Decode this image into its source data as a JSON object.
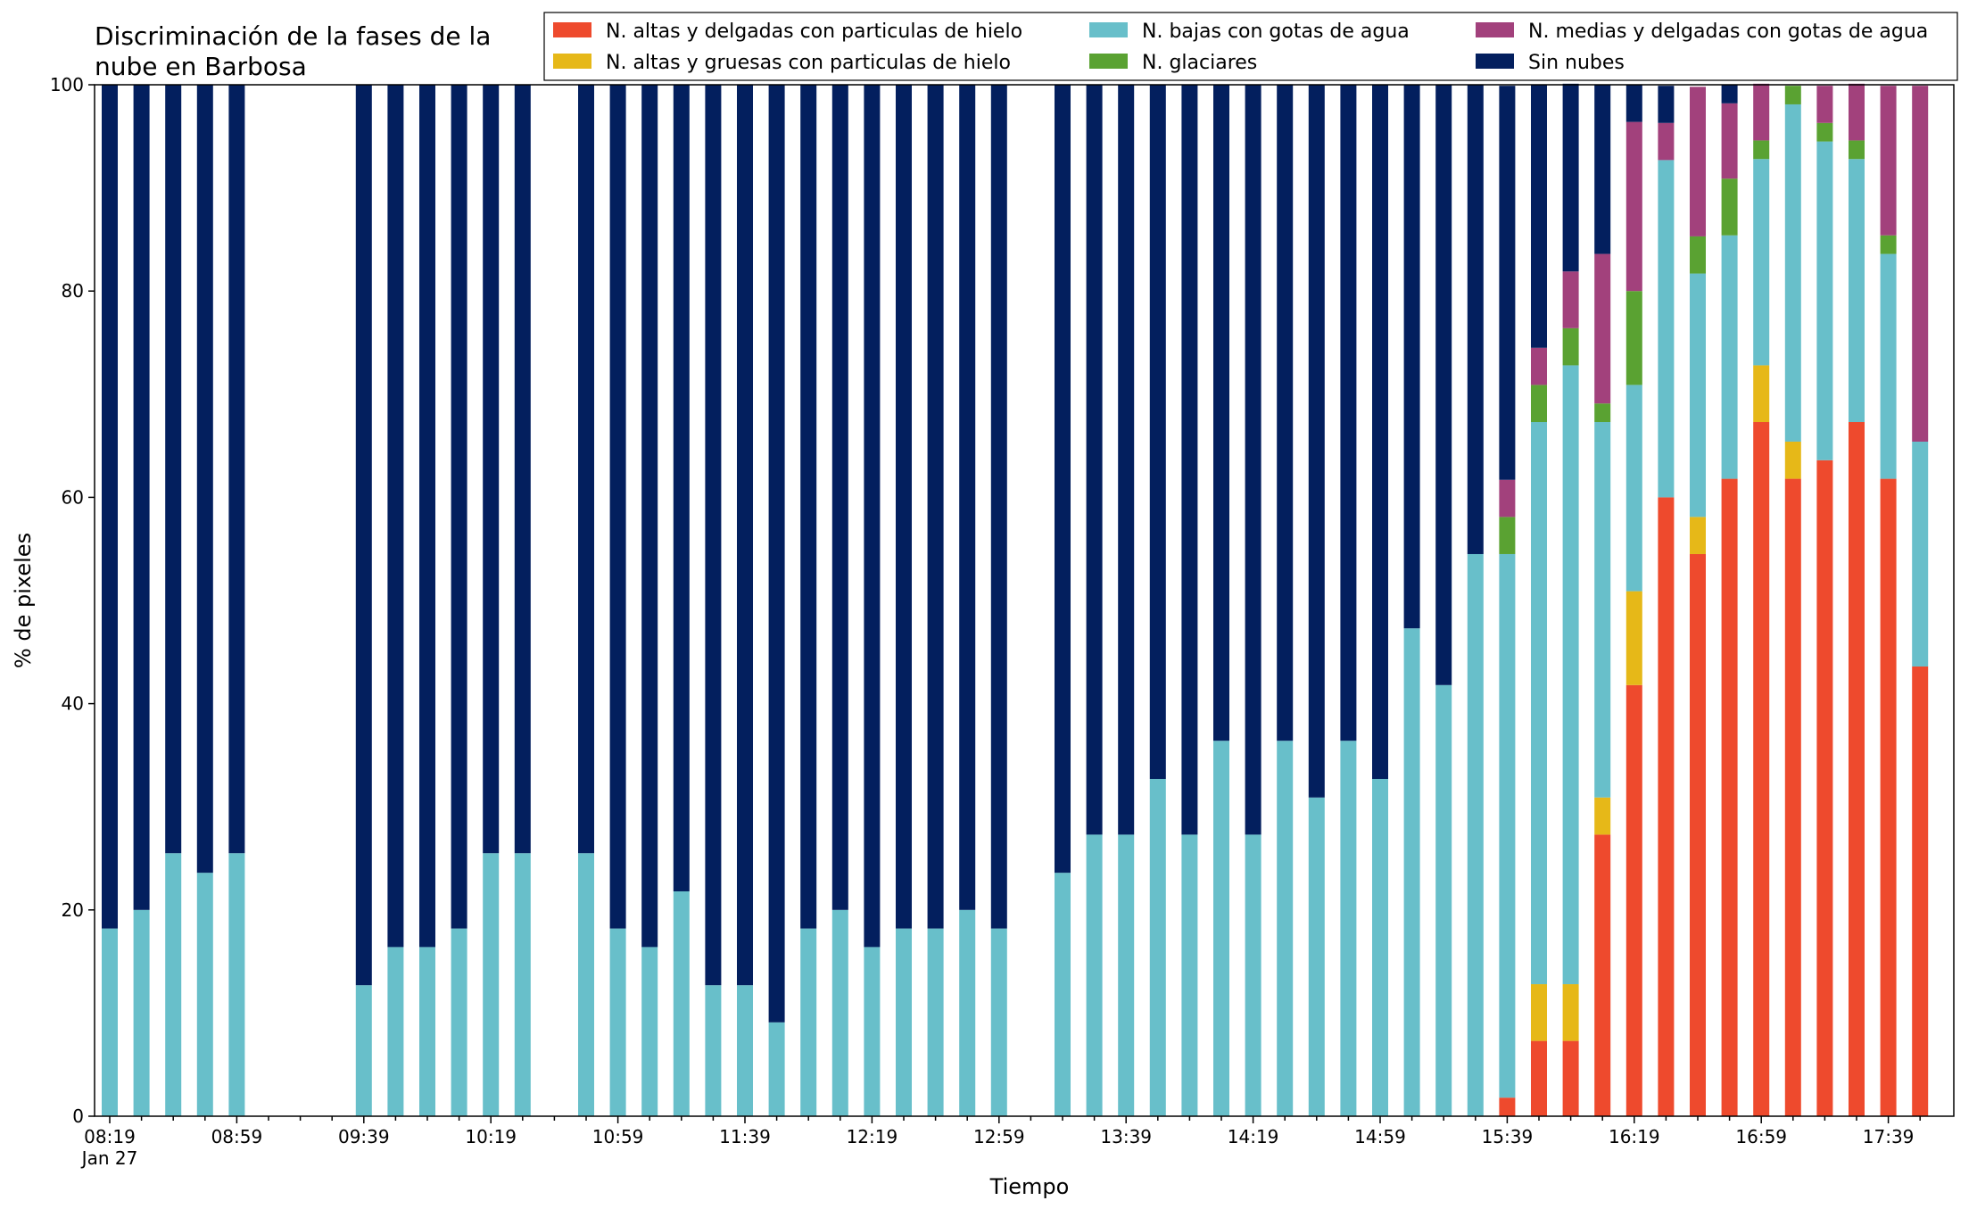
{
  "chart_data": {
    "type": "bar",
    "stacked": true,
    "title": [
      "Discriminación de la fases de la",
      "nube en Barbosa"
    ],
    "xlabel": "Tiempo",
    "ylabel": "% de pixeles",
    "ylim": [
      0,
      100
    ],
    "yticks": [
      0,
      20,
      40,
      60,
      80,
      100
    ],
    "xticks": [
      {
        "index": 0,
        "label": "08:19",
        "sublabel": "Jan 27"
      },
      {
        "index": 4,
        "label": "08:59"
      },
      {
        "index": 8,
        "label": "09:39"
      },
      {
        "index": 12,
        "label": "10:19"
      },
      {
        "index": 16,
        "label": "10:59"
      },
      {
        "index": 20,
        "label": "11:39"
      },
      {
        "index": 24,
        "label": "12:19"
      },
      {
        "index": 28,
        "label": "12:59"
      },
      {
        "index": 32,
        "label": "13:39"
      },
      {
        "index": 36,
        "label": "14:19"
      },
      {
        "index": 40,
        "label": "14:59"
      },
      {
        "index": 44,
        "label": "15:39"
      },
      {
        "index": 48,
        "label": "16:19"
      },
      {
        "index": 52,
        "label": "16:59"
      },
      {
        "index": 56,
        "label": "17:39"
      }
    ],
    "categories": [
      "08:19",
      "08:29",
      "08:39",
      "08:49",
      "08:59",
      "09:09",
      "09:19",
      "09:29",
      "09:39",
      "09:49",
      "09:59",
      "10:09",
      "10:19",
      "10:29",
      "10:39",
      "10:49",
      "10:59",
      "11:09",
      "11:19",
      "11:29",
      "11:39",
      "11:49",
      "11:59",
      "12:09",
      "12:19",
      "12:29",
      "12:39",
      "12:49",
      "12:59",
      "13:09",
      "13:19",
      "13:29",
      "13:39",
      "13:49",
      "13:59",
      "14:09",
      "14:19",
      "14:29",
      "14:39",
      "14:49",
      "14:59",
      "15:09",
      "15:19",
      "15:29",
      "15:39",
      "15:49",
      "15:59",
      "16:09",
      "16:19",
      "16:29",
      "16:39",
      "16:49",
      "16:59",
      "17:09",
      "17:19",
      "17:29",
      "17:39",
      "17:49"
    ],
    "series": [
      {
        "name": "N. altas y delgadas con particulas de hielo",
        "color": "#ee4a2d",
        "values": [
          0,
          0,
          0,
          0,
          0,
          null,
          null,
          null,
          0,
          0,
          0,
          0,
          0,
          0,
          null,
          0,
          0,
          0,
          0,
          0,
          0,
          0,
          0,
          0,
          0,
          0,
          0,
          0,
          0,
          null,
          0,
          0,
          0,
          0,
          0,
          0,
          0,
          0,
          0,
          0,
          0,
          0,
          0,
          0,
          1.8,
          7.3,
          7.3,
          27.3,
          41.8,
          60.0,
          54.5,
          61.8,
          67.3,
          61.8,
          63.6,
          67.3,
          61.8,
          43.6
        ]
      },
      {
        "name": "N. altas y gruesas con particulas de hielo",
        "color": "#e6b818",
        "values": [
          0,
          0,
          0,
          0,
          0,
          null,
          null,
          null,
          0,
          0,
          0,
          0,
          0,
          0,
          null,
          0,
          0,
          0,
          0,
          0,
          0,
          0,
          0,
          0,
          0,
          0,
          0,
          0,
          0,
          null,
          0,
          0,
          0,
          0,
          0,
          0,
          0,
          0,
          0,
          0,
          0,
          0,
          0,
          0,
          0,
          5.5,
          5.5,
          3.6,
          9.1,
          0,
          3.6,
          0,
          5.5,
          3.6,
          0,
          0,
          0,
          0
        ]
      },
      {
        "name": "N. bajas con gotas de agua",
        "color": "#68bfca",
        "values": [
          18.2,
          20.0,
          25.5,
          23.6,
          25.5,
          null,
          null,
          null,
          12.7,
          16.4,
          16.4,
          18.2,
          25.5,
          25.5,
          null,
          25.5,
          18.2,
          16.4,
          21.8,
          12.7,
          12.7,
          9.1,
          18.2,
          20.0,
          16.4,
          18.2,
          18.2,
          20.0,
          18.2,
          null,
          23.6,
          27.3,
          27.3,
          32.7,
          27.3,
          36.4,
          27.3,
          36.4,
          30.9,
          36.4,
          32.7,
          47.3,
          41.8,
          54.5,
          52.7,
          54.5,
          60.0,
          36.4,
          20.0,
          32.7,
          23.6,
          23.6,
          20.0,
          32.7,
          30.9,
          25.5,
          21.8,
          21.8
        ]
      },
      {
        "name": "N. glaciares",
        "color": "#5aa232",
        "values": [
          0,
          0,
          0,
          0,
          0,
          null,
          null,
          null,
          0,
          0,
          0,
          0,
          0,
          0,
          null,
          0,
          0,
          0,
          0,
          0,
          0,
          0,
          0,
          0,
          0,
          0,
          0,
          0,
          0,
          null,
          0,
          0,
          0,
          0,
          0,
          0,
          0,
          0,
          0,
          0,
          0,
          0,
          0,
          0,
          3.6,
          3.6,
          3.6,
          1.8,
          9.1,
          0,
          3.6,
          5.5,
          1.8,
          1.8,
          1.8,
          1.8,
          1.8,
          0
        ]
      },
      {
        "name": "N. medias y delgadas con gotas de agua",
        "color": "#a2417c",
        "values": [
          0,
          0,
          0,
          0,
          0,
          null,
          null,
          null,
          0,
          0,
          0,
          0,
          0,
          0,
          null,
          0,
          0,
          0,
          0,
          0,
          0,
          0,
          0,
          0,
          0,
          0,
          0,
          0,
          0,
          null,
          0,
          0,
          0,
          0,
          0,
          0,
          0,
          0,
          0,
          0,
          0,
          0,
          0,
          0,
          3.6,
          3.6,
          5.5,
          14.5,
          16.4,
          3.6,
          14.5,
          7.3,
          5.5,
          0,
          3.6,
          5.5,
          14.5,
          34.5
        ]
      },
      {
        "name": "Sin nubes",
        "color": "#031f5e",
        "values": [
          81.8,
          80.0,
          74.5,
          76.4,
          74.5,
          null,
          null,
          null,
          87.3,
          83.6,
          83.6,
          81.8,
          74.5,
          74.5,
          null,
          74.5,
          81.8,
          83.6,
          78.2,
          87.3,
          87.3,
          90.9,
          81.8,
          80.0,
          83.6,
          81.8,
          81.8,
          80.0,
          81.8,
          null,
          76.4,
          72.7,
          72.7,
          67.3,
          72.7,
          63.6,
          72.7,
          63.6,
          69.1,
          63.6,
          67.3,
          52.7,
          58.2,
          45.5,
          38.2,
          25.5,
          18.2,
          16.4,
          3.6,
          3.6,
          0,
          1.8,
          0,
          0,
          0,
          0,
          0,
          0
        ]
      }
    ],
    "legend": {
      "placement": "top-right",
      "columns": 3
    },
    "grid": false
  }
}
